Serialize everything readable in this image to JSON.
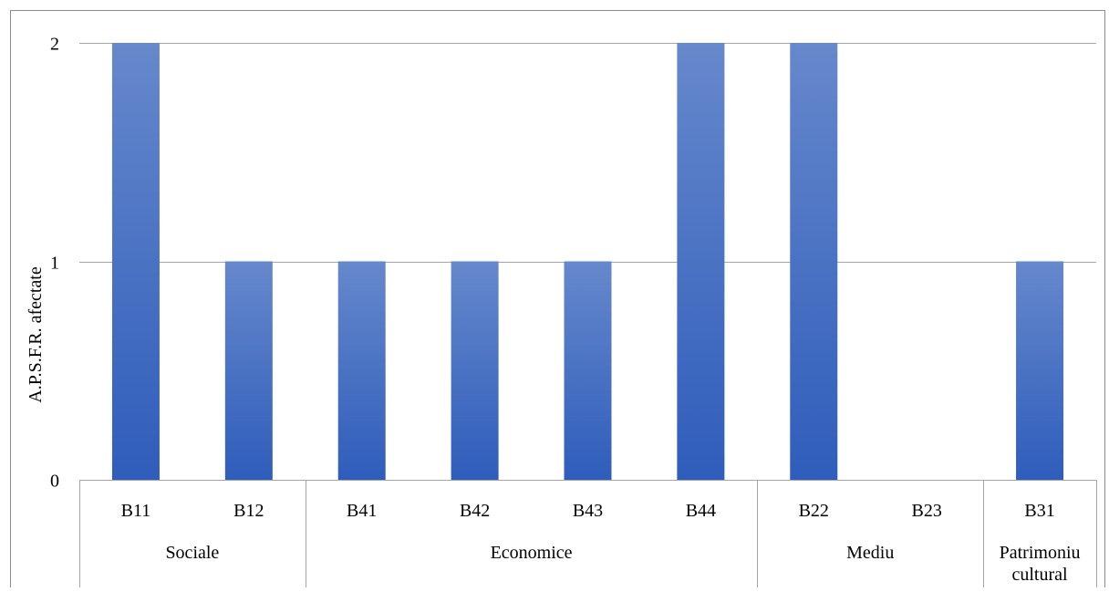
{
  "colors": {
    "bar_top": "#6688cc",
    "bar_bottom": "#2f5dbb",
    "gridline": "#a6a6a6",
    "frame": "#8c8c8c"
  },
  "chart_data": {
    "type": "bar",
    "title": "",
    "xlabel": "",
    "ylabel": "A.P.S.F.R. afectate",
    "ylim": [
      0,
      2
    ],
    "yticks": [
      "0",
      "1",
      "2"
    ],
    "grid": true,
    "legend": "none",
    "categories": [
      "B11",
      "B12",
      "B41",
      "B42",
      "B43",
      "B44",
      "B22",
      "B23",
      "B31"
    ],
    "values": [
      2,
      1,
      1,
      1,
      1,
      2,
      2,
      0,
      1
    ],
    "groups": [
      {
        "label": "Sociale",
        "count": 2
      },
      {
        "label": "Economice",
        "count": 4
      },
      {
        "label": "Mediu",
        "count": 2
      },
      {
        "label": "Patrimoniu cultural",
        "lines": [
          "Patrimoniu",
          "cultural"
        ],
        "count": 1
      }
    ]
  }
}
